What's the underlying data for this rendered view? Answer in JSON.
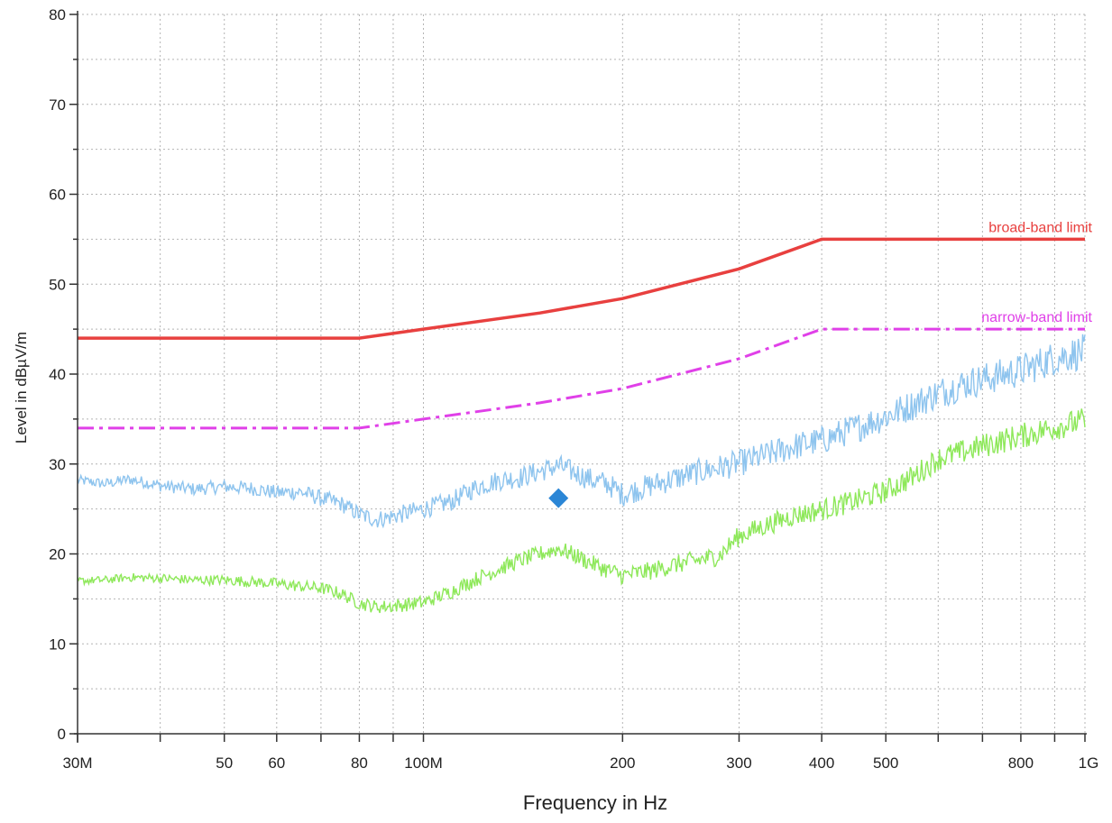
{
  "chart_data": {
    "type": "line",
    "title": "",
    "xlabel": "Frequency in Hz",
    "ylabel": "Level in dBµV/m",
    "x_scale": "log",
    "xlim": [
      30000000,
      1000000000
    ],
    "ylim": [
      0,
      80
    ],
    "grid": true,
    "y_ticks": [
      0,
      10,
      20,
      30,
      40,
      50,
      60,
      70,
      80
    ],
    "x_ticks": [
      {
        "value": 30000000,
        "label": "30M"
      },
      {
        "value": 50000000,
        "label": "50"
      },
      {
        "value": 60000000,
        "label": "60"
      },
      {
        "value": 80000000,
        "label": "80"
      },
      {
        "value": 100000000,
        "label": "100M"
      },
      {
        "value": 200000000,
        "label": "200"
      },
      {
        "value": 300000000,
        "label": "300"
      },
      {
        "value": 400000000,
        "label": "400"
      },
      {
        "value": 500000000,
        "label": "500"
      },
      {
        "value": 800000000,
        "label": "800"
      },
      {
        "value": 1000000000,
        "label": "1G"
      }
    ],
    "x_minor_ticks": [
      40000000,
      70000000,
      90000000,
      600000000,
      700000000,
      900000000
    ],
    "limits": [
      {
        "name": "broad-band limit",
        "color": "#e8403f",
        "style": "solid",
        "x": [
          30000000,
          80000000,
          100000000,
          150000000,
          200000000,
          300000000,
          400000000,
          1000000000
        ],
        "y": [
          44,
          44,
          45,
          46.8,
          48.4,
          51.7,
          55,
          55
        ]
      },
      {
        "name": "narrow-band limit",
        "color": "#e040e8",
        "style": "dash-dot",
        "x": [
          30000000,
          80000000,
          100000000,
          150000000,
          200000000,
          300000000,
          400000000,
          1000000000
        ],
        "y": [
          34,
          34,
          35,
          36.8,
          38.4,
          41.7,
          45,
          45
        ]
      }
    ],
    "series": [
      {
        "color": "#8ec4ee",
        "x": [
          30000000,
          33000000,
          36000000,
          40000000,
          45000000,
          50000000,
          55000000,
          60000000,
          65000000,
          70000000,
          75000000,
          80000000,
          85000000,
          90000000,
          100000000,
          110000000,
          120000000,
          130000000,
          140000000,
          150000000,
          160000000,
          170000000,
          180000000,
          190000000,
          200000000,
          220000000,
          240000000,
          260000000,
          280000000,
          300000000,
          330000000,
          360000000,
          400000000,
          450000000,
          500000000,
          550000000,
          600000000,
          650000000,
          700000000,
          750000000,
          800000000,
          850000000,
          900000000,
          1000000000
        ],
        "y": [
          28.2,
          27.8,
          28.3,
          27.6,
          27.2,
          27.5,
          27.3,
          26.8,
          26.9,
          26.2,
          25.6,
          24.4,
          23.8,
          24.2,
          25.0,
          25.8,
          27.4,
          28.2,
          28.5,
          29.2,
          29.8,
          29.0,
          28.2,
          27.8,
          26.6,
          27.6,
          28.4,
          29.1,
          29.6,
          30.1,
          31.0,
          31.9,
          32.6,
          34.0,
          35.3,
          36.6,
          37.9,
          38.8,
          39.4,
          39.9,
          40.4,
          41.1,
          41.8,
          42.5
        ],
        "noise": 1.6
      },
      {
        "color": "#8ee85a",
        "x": [
          30000000,
          33000000,
          36000000,
          40000000,
          45000000,
          50000000,
          55000000,
          60000000,
          65000000,
          70000000,
          75000000,
          80000000,
          85000000,
          90000000,
          100000000,
          110000000,
          120000000,
          130000000,
          140000000,
          150000000,
          160000000,
          170000000,
          180000000,
          190000000,
          200000000,
          220000000,
          240000000,
          260000000,
          280000000,
          300000000,
          330000000,
          360000000,
          400000000,
          450000000,
          500000000,
          550000000,
          600000000,
          650000000,
          700000000,
          750000000,
          800000000,
          850000000,
          900000000,
          1000000000
        ],
        "y": [
          17.0,
          17.1,
          17.4,
          17.3,
          17.1,
          17.1,
          16.9,
          16.7,
          16.4,
          16.2,
          15.6,
          14.5,
          14.1,
          14.2,
          14.6,
          15.8,
          17.2,
          18.3,
          19.3,
          20.0,
          20.6,
          19.8,
          18.9,
          18.2,
          17.6,
          18.1,
          18.8,
          19.3,
          19.8,
          22.0,
          23.2,
          24.2,
          24.9,
          25.9,
          27.0,
          28.6,
          30.6,
          31.3,
          32.0,
          32.6,
          33.1,
          33.6,
          34.1,
          34.8
        ],
        "noise": 1.2
      }
    ],
    "markers": [
      {
        "x": 160000000,
        "y": 26.2,
        "shape": "diamond",
        "color": "#2b86d6"
      }
    ]
  }
}
